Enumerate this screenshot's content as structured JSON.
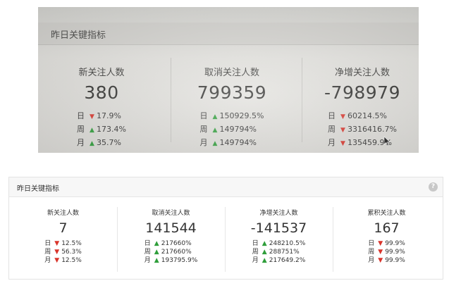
{
  "photo": {
    "title": "昨日关键指标",
    "metrics": [
      {
        "label": "新关注人数",
        "value": "380",
        "rows": [
          {
            "period": "日",
            "dir": "down",
            "change": "17.9%"
          },
          {
            "period": "周",
            "dir": "up",
            "change": "173.4%"
          },
          {
            "period": "月",
            "dir": "up",
            "change": "35.7%"
          }
        ]
      },
      {
        "label": "取消关注人数",
        "value": "799359",
        "rows": [
          {
            "period": "日",
            "dir": "up",
            "change": "150929.5%"
          },
          {
            "period": "周",
            "dir": "up",
            "change": "149794%"
          },
          {
            "period": "月",
            "dir": "up",
            "change": "149794%"
          }
        ]
      },
      {
        "label": "净增关注人数",
        "value": "-798979",
        "rows": [
          {
            "period": "日",
            "dir": "down",
            "change": "60214.5%"
          },
          {
            "period": "周",
            "dir": "down",
            "change": "3316416.7%"
          },
          {
            "period": "月",
            "dir": "down",
            "change": "135459.9%"
          }
        ]
      }
    ]
  },
  "panel": {
    "title": "昨日关键指标",
    "help_glyph": "?",
    "metrics": [
      {
        "label": "新关注人数",
        "value": "7",
        "rows": [
          {
            "period": "日",
            "dir": "down",
            "change": "12.5%"
          },
          {
            "period": "周",
            "dir": "down",
            "change": "56.3%"
          },
          {
            "period": "月",
            "dir": "down",
            "change": "12.5%"
          }
        ]
      },
      {
        "label": "取消关注人数",
        "value": "141544",
        "rows": [
          {
            "period": "日",
            "dir": "up",
            "change": "217660%"
          },
          {
            "period": "周",
            "dir": "up",
            "change": "217660%"
          },
          {
            "period": "月",
            "dir": "up",
            "change": "193795.9%"
          }
        ]
      },
      {
        "label": "净增关注人数",
        "value": "-141537",
        "rows": [
          {
            "period": "日",
            "dir": "up",
            "change": "248210.5%"
          },
          {
            "period": "周",
            "dir": "up",
            "change": "288751%"
          },
          {
            "period": "月",
            "dir": "up",
            "change": "217649.2%"
          }
        ]
      },
      {
        "label": "累积关注人数",
        "value": "167",
        "rows": [
          {
            "period": "日",
            "dir": "down",
            "change": "99.9%"
          },
          {
            "period": "周",
            "dir": "down",
            "change": "99.9%"
          },
          {
            "period": "月",
            "dir": "down",
            "change": "99.9%"
          }
        ]
      }
    ]
  },
  "icons": {
    "up": "up-arrow-icon",
    "down": "down-arrow-icon",
    "help": "help-icon",
    "cursor": "mouse-cursor-icon"
  },
  "colors": {
    "up": "#2e9e3a",
    "down": "#d9342b"
  }
}
